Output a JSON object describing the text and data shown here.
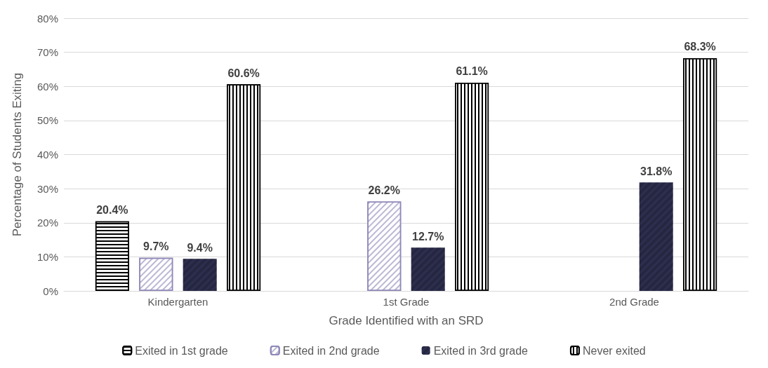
{
  "chart_data": {
    "type": "bar",
    "xlabel": "Grade Identified with an SRD",
    "ylabel": "Percentage of Students Exiting",
    "categories": [
      "Kindergarten",
      "1st Grade",
      "2nd Grade"
    ],
    "series": [
      {
        "name": "Exited in 1st grade",
        "color": "#000000",
        "values": [
          20.4,
          null,
          null
        ],
        "value_labels": [
          "20.4%",
          null,
          null
        ]
      },
      {
        "name": "Exited in 2nd grade",
        "color": "#8e88b8",
        "values": [
          9.7,
          26.2,
          null
        ],
        "value_labels": [
          "9.7%",
          "26.2%",
          null
        ]
      },
      {
        "name": "Exited in 3rd grade",
        "color": "#2e2f4f",
        "values": [
          9.4,
          12.7,
          31.8
        ],
        "value_labels": [
          "9.4%",
          "12.7%",
          "31.8%"
        ]
      },
      {
        "name": "Never exited",
        "color": "#000000",
        "values": [
          60.6,
          61.1,
          68.3
        ],
        "value_labels": [
          "60.6%",
          "61.1%",
          "68.3%"
        ]
      }
    ],
    "ylim": [
      0,
      80
    ],
    "yticks": [
      {
        "value": 0,
        "label": "0%"
      },
      {
        "value": 10,
        "label": "10%"
      },
      {
        "value": 20,
        "label": "20%"
      },
      {
        "value": 30,
        "label": "30%"
      },
      {
        "value": 40,
        "label": "40%"
      },
      {
        "value": 50,
        "label": "50%"
      },
      {
        "value": 60,
        "label": "60%"
      },
      {
        "value": 70,
        "label": "70%"
      },
      {
        "value": 80,
        "label": "80%"
      }
    ],
    "grid": "y",
    "legend": "bottom"
  }
}
